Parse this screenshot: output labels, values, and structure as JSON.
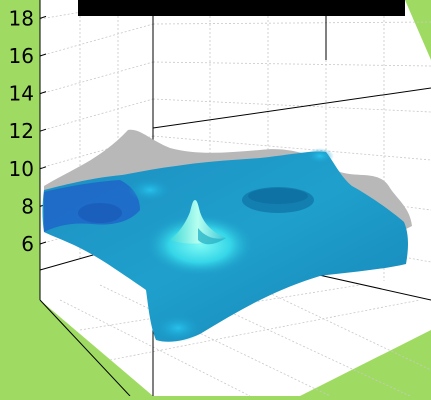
{
  "chart_data": {
    "type": "surface",
    "title": "",
    "zlabel": "",
    "zticks": [
      "6",
      "8",
      "10",
      "12",
      "14",
      "16",
      "18"
    ],
    "zlim": [
      5,
      19
    ],
    "grid": true,
    "colors": {
      "background": "#9fdb62",
      "axes_face": "#ffffff",
      "surface_base": "#1a9ac8",
      "surface_high": "#3ff0f0",
      "surface_edge": "#1f5fc8",
      "shadow": "#b8b8b8",
      "title_bar": "#000000"
    },
    "features": [
      {
        "kind": "peak",
        "label": "central spike"
      },
      {
        "kind": "depression",
        "label": "shallow dip"
      }
    ]
  }
}
